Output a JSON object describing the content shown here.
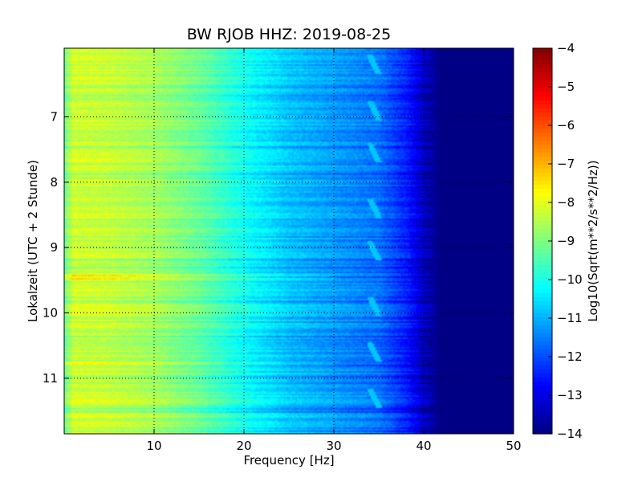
{
  "chart_data": {
    "type": "heatmap",
    "title": "BW RJOB HHZ: 2019-08-25",
    "xlabel": "Frequency [Hz]",
    "ylabel": "Lokalzeit (UTC + 2 Stunde)",
    "xlim": [
      0,
      50
    ],
    "ylim": [
      5.95,
      11.85
    ],
    "y_inverted": true,
    "x_ticks": [
      10,
      20,
      30,
      40,
      50
    ],
    "y_ticks": [
      7,
      8,
      9,
      10,
      11
    ],
    "grid": true,
    "colormap": "jet",
    "colorbar": {
      "label": "Log10(Sqrt(m**2/s**2/Hz))",
      "range": [
        -14,
        -4
      ],
      "ticks": [
        -4,
        -5,
        -6,
        -7,
        -8,
        -9,
        -10,
        -11,
        -12,
        -13,
        -14
      ]
    },
    "spectrum_profile": {
      "frequency_hz": [
        0,
        1,
        5,
        10,
        15,
        20,
        25,
        30,
        35,
        38,
        40,
        42,
        45,
        50
      ],
      "log10_amplitude": [
        -9.2,
        -8.2,
        -8.3,
        -8.6,
        -9.2,
        -10.1,
        -10.8,
        -11.2,
        -11.6,
        -12.4,
        -13.3,
        -14,
        -14,
        -14
      ]
    },
    "tonal_line": {
      "description_visible": "narrow bright streaks recurring near 34-35 Hz",
      "frequency_hz": 34.5,
      "log10_amplitude": -10.8,
      "occurrences_hours": [
        6.2,
        6.9,
        7.55,
        8.4,
        9.05,
        9.9,
        10.6,
        11.3
      ]
    },
    "event_bands": [
      {
        "hour": 9.45,
        "log10_amplitude_boost": 0.9
      },
      {
        "hour": 10.78,
        "log10_amplitude_boost": 0.7
      },
      {
        "hour": 7.67,
        "log10_amplitude_boost": 0.5
      }
    ]
  }
}
